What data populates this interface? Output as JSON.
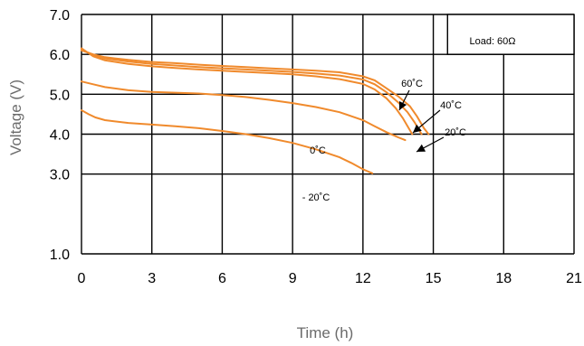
{
  "chart_data": {
    "type": "line",
    "title": "",
    "xlabel": "Time (h)",
    "ylabel": "Voltage (V)",
    "xlim": [
      0,
      21
    ],
    "ylim": [
      1.0,
      7.0
    ],
    "xticks": [
      0,
      3,
      6,
      9,
      12,
      15,
      18,
      21
    ],
    "xtick_labels": [
      "0",
      "3",
      "6",
      "9",
      "12",
      "15",
      "18",
      "21"
    ],
    "yticks": [
      1.0,
      3.0,
      4.0,
      5.0,
      6.0,
      7.0
    ],
    "ytick_labels": [
      "1.0",
      "3.0",
      "4.0",
      "5.0",
      "6.0",
      "7.0"
    ],
    "grid": true,
    "legend": "none",
    "load_label": "Load: 60Ω",
    "color": "#f08a2c",
    "series": [
      {
        "name": "60˚C",
        "x": [
          0,
          0.5,
          1,
          2,
          3,
          4,
          5,
          6,
          7,
          8,
          9,
          10,
          11,
          12,
          12.5,
          13,
          13.5,
          14,
          14.3,
          14.6,
          14.8
        ],
        "y": [
          6.1,
          6.0,
          5.93,
          5.86,
          5.81,
          5.78,
          5.74,
          5.71,
          5.68,
          5.65,
          5.62,
          5.59,
          5.55,
          5.45,
          5.35,
          5.15,
          4.95,
          4.7,
          4.45,
          4.15,
          4.0
        ]
      },
      {
        "name": "40˚C",
        "x": [
          0,
          0.5,
          1,
          2,
          3,
          4,
          5,
          6,
          7,
          8,
          9,
          10,
          11,
          12,
          12.5,
          13,
          13.5,
          13.9,
          14.2,
          14.5
        ],
        "y": [
          6.12,
          5.98,
          5.9,
          5.82,
          5.76,
          5.72,
          5.68,
          5.65,
          5.62,
          5.59,
          5.56,
          5.52,
          5.47,
          5.37,
          5.25,
          5.05,
          4.8,
          4.55,
          4.3,
          4.0
        ]
      },
      {
        "name": "20˚C",
        "x": [
          0,
          0.5,
          1,
          2,
          3,
          4,
          5,
          6,
          7,
          8,
          9,
          10,
          11,
          12,
          12.5,
          13,
          13.4,
          13.7,
          13.95,
          14.1
        ],
        "y": [
          6.15,
          5.95,
          5.85,
          5.76,
          5.7,
          5.66,
          5.62,
          5.59,
          5.56,
          5.53,
          5.5,
          5.45,
          5.38,
          5.26,
          5.12,
          4.9,
          4.65,
          4.4,
          4.15,
          4.0
        ]
      },
      {
        "name": "0˚C",
        "x": [
          0,
          0.5,
          1,
          2,
          3,
          4,
          5,
          6,
          7,
          8,
          9,
          10,
          11,
          12,
          12.5,
          13,
          13.5,
          13.8
        ],
        "y": [
          5.32,
          5.25,
          5.18,
          5.1,
          5.06,
          5.04,
          5.02,
          4.98,
          4.93,
          4.86,
          4.78,
          4.68,
          4.55,
          4.35,
          4.2,
          4.05,
          3.92,
          3.85
        ]
      },
      {
        "name": "- 20˚C",
        "x": [
          0,
          0.3,
          0.6,
          1,
          2,
          3,
          4,
          5,
          6,
          7,
          8,
          9,
          10,
          11,
          11.5,
          12,
          12.4
        ],
        "y": [
          4.6,
          4.5,
          4.42,
          4.35,
          4.28,
          4.24,
          4.2,
          4.15,
          4.08,
          4.0,
          3.9,
          3.78,
          3.62,
          3.42,
          3.28,
          3.12,
          3.02
        ]
      }
    ]
  }
}
